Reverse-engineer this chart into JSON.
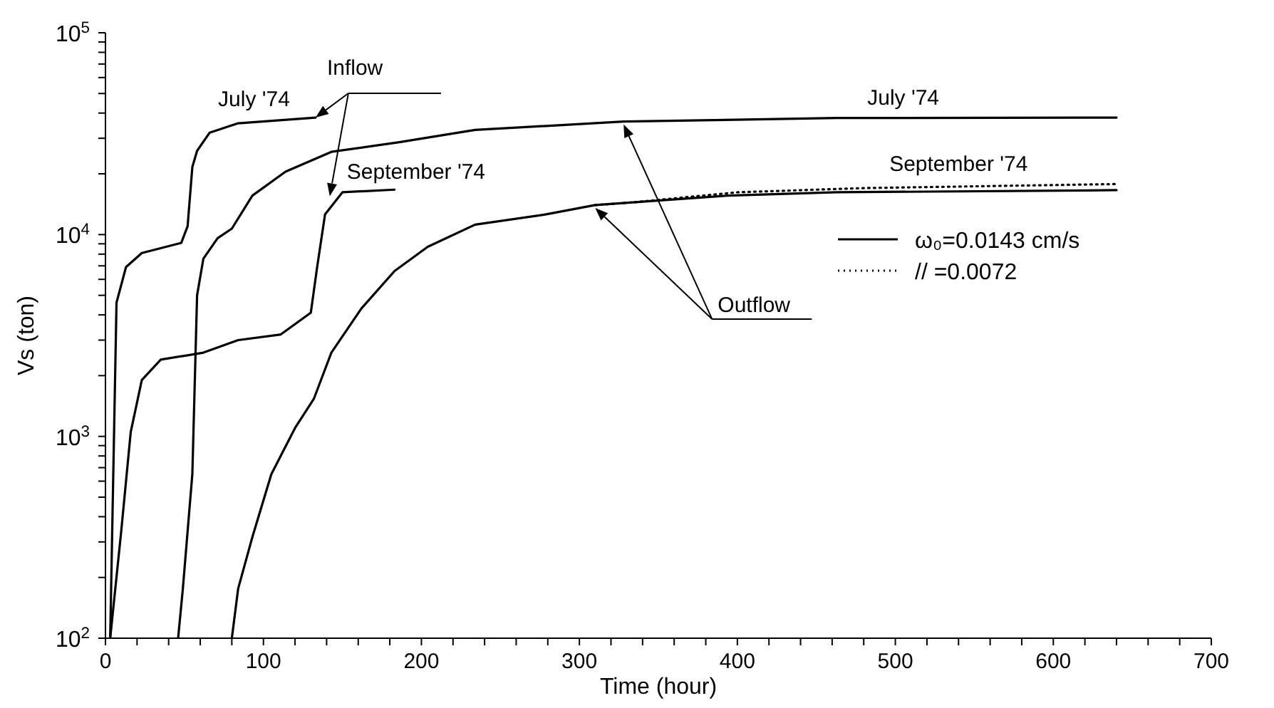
{
  "chart_data": {
    "type": "line",
    "xlabel": "Time (hour)",
    "ylabel": "Vs (ton)",
    "log": "y",
    "xlim": [
      0,
      700
    ],
    "ylim": [
      100,
      100000
    ],
    "xticks": [
      0,
      {
        "value": 20,
        "label": null
      },
      {
        "value": 40,
        "label": null
      },
      {
        "value": 60,
        "label": null
      },
      {
        "value": 80,
        "label": null
      },
      100,
      {
        "value": 120,
        "label": null
      },
      {
        "value": 140,
        "label": null
      },
      {
        "value": 160,
        "label": null
      },
      {
        "value": 180,
        "label": null
      },
      200,
      {
        "value": 220,
        "label": null
      },
      {
        "value": 240,
        "label": null
      },
      {
        "value": 260,
        "label": null
      },
      {
        "value": 280,
        "label": null
      },
      300,
      {
        "value": 320,
        "label": null
      },
      {
        "value": 340,
        "label": null
      },
      {
        "value": 360,
        "label": null
      },
      {
        "value": 380,
        "label": null
      },
      400,
      {
        "value": 420,
        "label": null
      },
      {
        "value": 440,
        "label": null
      },
      {
        "value": 460,
        "label": null
      },
      {
        "value": 480,
        "label": null
      },
      500,
      {
        "value": 520,
        "label": null
      },
      {
        "value": 540,
        "label": null
      },
      {
        "value": 560,
        "label": null
      },
      {
        "value": 580,
        "label": null
      },
      600,
      {
        "value": 620,
        "label": null
      },
      {
        "value": 640,
        "label": null
      },
      {
        "value": 660,
        "label": null
      },
      {
        "value": 680,
        "label": null
      },
      700
    ],
    "yticks": [
      {
        "value": 100,
        "label": "10$^{2}$"
      },
      {
        "value": 200,
        "label": null
      },
      {
        "value": 300,
        "label": null
      },
      {
        "value": 400,
        "label": null
      },
      {
        "value": 500,
        "label": null
      },
      {
        "value": 600,
        "label": null
      },
      {
        "value": 700,
        "label": null
      },
      {
        "value": 800,
        "label": null
      },
      {
        "value": 900,
        "label": null
      },
      {
        "value": 1000,
        "label": "10$^{3}$"
      },
      {
        "value": 2000,
        "label": null
      },
      {
        "value": 3000,
        "label": null
      },
      {
        "value": 4000,
        "label": null
      },
      {
        "value": 5000,
        "label": null
      },
      {
        "value": 6000,
        "label": null
      },
      {
        "value": 7000,
        "label": null
      },
      {
        "value": 8000,
        "label": null
      },
      {
        "value": 9000,
        "label": null
      },
      {
        "value": 10000,
        "label": "10$^{4}$"
      },
      {
        "value": 20000,
        "label": null
      },
      {
        "value": 30000,
        "label": null
      },
      {
        "value": 40000,
        "label": null
      },
      {
        "value": 50000,
        "label": null
      },
      {
        "value": 60000,
        "label": null
      },
      {
        "value": 70000,
        "label": null
      },
      {
        "value": 80000,
        "label": null
      },
      {
        "value": 90000,
        "label": null
      },
      {
        "value": 100000,
        "label": "10$^{5}$"
      }
    ],
    "grid": false,
    "marker": "none",
    "legend": "right",
    "series": [
      {
        "color": "#000000",
        "line_style": "solid",
        "x": [
          3,
          7,
          13,
          23,
          48,
          52,
          55,
          58,
          66,
          84,
          133
        ],
        "values": [
          100,
          4600,
          6900,
          8100,
          9100,
          11000,
          21600,
          26000,
          32000,
          35600,
          38000
        ]
      },
      {
        "color": "#000000",
        "line_style": "solid",
        "x": [
          3,
          10,
          16,
          23,
          35,
          62,
          84,
          111,
          130,
          134,
          139,
          150,
          183
        ],
        "values": [
          100,
          340,
          1050,
          1900,
          2400,
          2600,
          3000,
          3200,
          4100,
          6900,
          12600,
          16200,
          16700
        ]
      },
      {
        "color": "#000000",
        "line_style": "solid",
        "x": [
          46,
          49,
          55,
          58,
          62,
          71,
          80,
          93,
          114,
          143,
          186,
          234,
          328,
          463,
          640
        ],
        "values": [
          100,
          176,
          650,
          5000,
          7600,
          9600,
          10700,
          15600,
          20500,
          25700,
          28700,
          33000,
          36300,
          37800,
          38000
        ]
      },
      {
        "name": "ω₀=0.0143 cm/s",
        "color": "#000000",
        "line_style": "solid",
        "x": [
          80,
          84,
          93,
          105,
          120,
          132,
          143,
          162,
          183,
          204,
          234,
          279,
          310,
          394,
          463,
          640
        ],
        "values": [
          100,
          176,
          317,
          650,
          1100,
          1540,
          2600,
          4300,
          6600,
          8700,
          11200,
          12600,
          14000,
          15600,
          16200,
          16600
        ]
      },
      {
        "name": "// =0.0072",
        "color": "#000000",
        "line_style": "dotted",
        "x": [
          310,
          332,
          400,
          480,
          640
        ],
        "values": [
          14000,
          14400,
          16200,
          17000,
          17800
        ]
      }
    ],
    "annotations": [
      {
        "text": "Inflow",
        "x": 133,
        "y": 38000
      },
      {
        "text": "July '74",
        "x": 133,
        "y": 38000
      },
      {
        "text": "September '74",
        "x": 142,
        "y": 15500
      },
      "Outflow",
      {
        "text": "July '74",
        "x": 505,
        "y": 37400
      },
      {
        "text": "September '74",
        "x": 540,
        "y": 16500
      }
    ]
  }
}
